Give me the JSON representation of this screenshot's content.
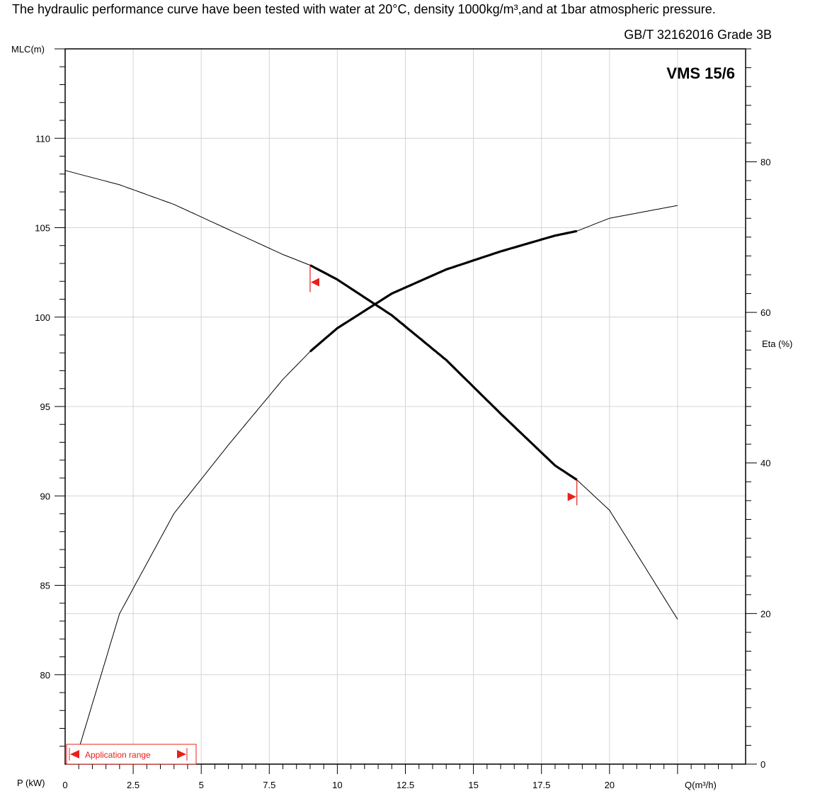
{
  "header": {
    "description": "The hydraulic performance curve have been tested with water at 20°C, density 1000kg/m³,and at 1bar atmospheric pressure.",
    "standard": "GB/T 32162016 Grade 3B"
  },
  "colors": {
    "grid": "#d4d4d4",
    "axis": "#000000",
    "curve": "#000000",
    "range_marker": "#e8201a"
  },
  "chart_data": {
    "type": "line",
    "model": "VMS 15/6",
    "xlabel": "Q(m³/h)",
    "ylabel": "MLC(m)",
    "y2label": "Eta (%)",
    "plabel": "P (kW)",
    "xlim": [
      0,
      25
    ],
    "ylim": [
      75,
      115
    ],
    "y2lim": [
      0,
      95
    ],
    "grid": true,
    "x_ticks": [
      0,
      2.5,
      5,
      7.5,
      10,
      12.5,
      15,
      17.5,
      20
    ],
    "x_tick_labels": [
      "0",
      "2.5",
      "5",
      "7.5",
      "10",
      "12.5",
      "15",
      "17.5",
      "20"
    ],
    "y_ticks": [
      80,
      85,
      90,
      95,
      100,
      105,
      110
    ],
    "y_tick_labels": [
      "80",
      "85",
      "90",
      "95",
      "100",
      "105",
      "110"
    ],
    "y2_ticks": [
      0,
      20,
      40,
      60,
      80
    ],
    "y2_tick_labels": [
      "0",
      "20",
      "40",
      "60",
      "80"
    ],
    "application_range": {
      "label": "Application range",
      "q_min": 9,
      "q_max": 18.8
    },
    "series": [
      {
        "axis": "head",
        "x": [
          0,
          2,
          4,
          6,
          8,
          9,
          10,
          12,
          14,
          16,
          18,
          18.8,
          20,
          22.5
        ],
        "values": [
          108.2,
          107.4,
          106.3,
          104.9,
          103.5,
          102.9,
          102.1,
          100.1,
          97.6,
          94.6,
          91.7,
          90.9,
          89.2,
          83.1
        ]
      },
      {
        "axis": "efficiency",
        "x": [
          0.5,
          2,
          4,
          6,
          8,
          9,
          10,
          12,
          14,
          16,
          18,
          18.8,
          20,
          22.5
        ],
        "values": [
          2,
          20,
          33.3,
          42.4,
          51.1,
          54.8,
          57.9,
          62.5,
          65.7,
          68.1,
          70.2,
          70.8,
          72.5,
          74.2
        ]
      }
    ]
  }
}
